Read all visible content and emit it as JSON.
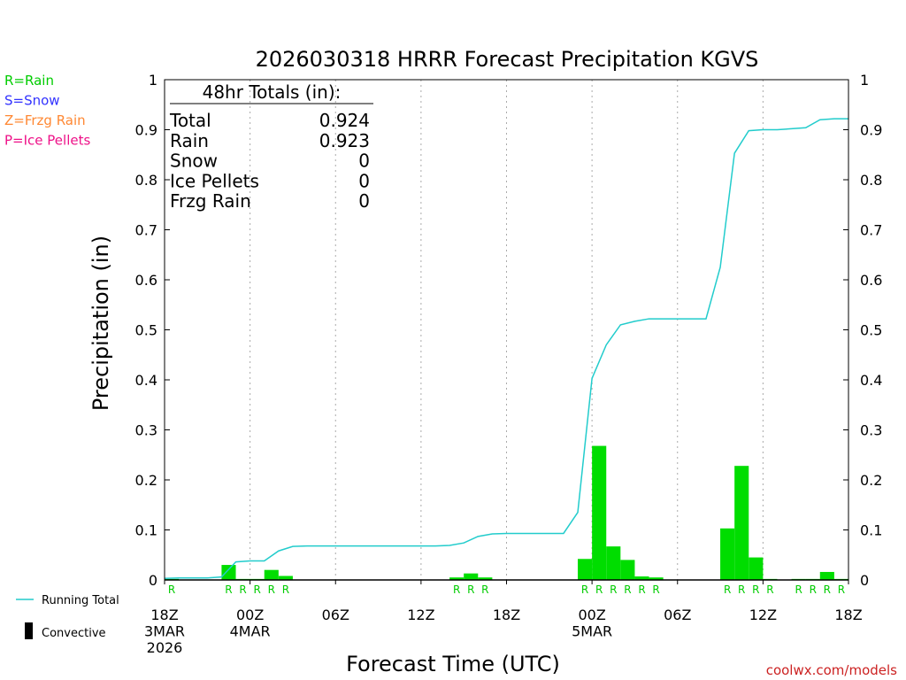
{
  "chart_data": {
    "type": "bar",
    "title": "2026030318 HRRR Forecast Precipitation KGVS",
    "xlabel": "Forecast Time (UTC)",
    "ylabel": "Precipitation (in)",
    "ylim": [
      0,
      1
    ],
    "xlim_hours": [
      0,
      48
    ],
    "y_ticks": [
      "0",
      "0.1",
      "0.2",
      "0.3",
      "0.4",
      "0.5",
      "0.6",
      "0.7",
      "0.8",
      "0.9",
      "1"
    ],
    "x_ticks": [
      {
        "hour": 0,
        "lines": [
          "18Z",
          "3MAR",
          "2026"
        ]
      },
      {
        "hour": 6,
        "lines": [
          "00Z",
          "4MAR"
        ]
      },
      {
        "hour": 12,
        "lines": [
          "06Z"
        ]
      },
      {
        "hour": 18,
        "lines": [
          "12Z"
        ]
      },
      {
        "hour": 24,
        "lines": [
          "18Z"
        ]
      },
      {
        "hour": 30,
        "lines": [
          "00Z",
          "5MAR"
        ]
      },
      {
        "hour": 36,
        "lines": [
          "06Z"
        ]
      },
      {
        "hour": 42,
        "lines": [
          "12Z"
        ]
      },
      {
        "hour": 48,
        "lines": [
          "18Z"
        ]
      }
    ],
    "hourly_precip": [
      {
        "hour": 1,
        "value": 0.002,
        "type": "R"
      },
      {
        "hour": 5,
        "value": 0.03,
        "type": "R"
      },
      {
        "hour": 6,
        "value": 0.002,
        "type": "R"
      },
      {
        "hour": 7,
        "value": 0.002,
        "type": "R"
      },
      {
        "hour": 8,
        "value": 0.02,
        "type": "R"
      },
      {
        "hour": 9,
        "value": 0.008,
        "type": "R"
      },
      {
        "hour": 21,
        "value": 0.005,
        "type": "R"
      },
      {
        "hour": 22,
        "value": 0.013,
        "type": "R"
      },
      {
        "hour": 23,
        "value": 0.005,
        "type": "R"
      },
      {
        "hour": 30,
        "value": 0.042,
        "type": "R"
      },
      {
        "hour": 31,
        "value": 0.268,
        "type": "R"
      },
      {
        "hour": 32,
        "value": 0.067,
        "type": "R"
      },
      {
        "hour": 33,
        "value": 0.04,
        "type": "R"
      },
      {
        "hour": 34,
        "value": 0.007,
        "type": "R"
      },
      {
        "hour": 35,
        "value": 0.005,
        "type": "R"
      },
      {
        "hour": 40,
        "value": 0.103,
        "type": "R"
      },
      {
        "hour": 41,
        "value": 0.228,
        "type": "R"
      },
      {
        "hour": 42,
        "value": 0.045,
        "type": "R"
      },
      {
        "hour": 43,
        "value": 0.002,
        "type": "R"
      },
      {
        "hour": 45,
        "value": 0.002,
        "type": "R"
      },
      {
        "hour": 46,
        "value": 0.002,
        "type": "R"
      },
      {
        "hour": 47,
        "value": 0.016,
        "type": "R"
      },
      {
        "hour": 48,
        "value": 0.002,
        "type": "R"
      }
    ],
    "running_total": [
      [
        0,
        0.003
      ],
      [
        1,
        0.004
      ],
      [
        2,
        0.004
      ],
      [
        3,
        0.004
      ],
      [
        4,
        0.006
      ],
      [
        5,
        0.036
      ],
      [
        6,
        0.038
      ],
      [
        7,
        0.038
      ],
      [
        8,
        0.058
      ],
      [
        9,
        0.067
      ],
      [
        10,
        0.068
      ],
      [
        11,
        0.068
      ],
      [
        12,
        0.068
      ],
      [
        13,
        0.068
      ],
      [
        14,
        0.068
      ],
      [
        15,
        0.068
      ],
      [
        16,
        0.068
      ],
      [
        17,
        0.068
      ],
      [
        18,
        0.068
      ],
      [
        19,
        0.068
      ],
      [
        20,
        0.069
      ],
      [
        21,
        0.074
      ],
      [
        22,
        0.087
      ],
      [
        23,
        0.092
      ],
      [
        24,
        0.093
      ],
      [
        25,
        0.093
      ],
      [
        26,
        0.093
      ],
      [
        27,
        0.093
      ],
      [
        28,
        0.093
      ],
      [
        29,
        0.135
      ],
      [
        30,
        0.403
      ],
      [
        31,
        0.47
      ],
      [
        32,
        0.51
      ],
      [
        33,
        0.517
      ],
      [
        34,
        0.522
      ],
      [
        35,
        0.522
      ],
      [
        36,
        0.522
      ],
      [
        37,
        0.522
      ],
      [
        38,
        0.522
      ],
      [
        39,
        0.625
      ],
      [
        40,
        0.853
      ],
      [
        41,
        0.898
      ],
      [
        42,
        0.9
      ],
      [
        43,
        0.9
      ],
      [
        44,
        0.902
      ],
      [
        45,
        0.904
      ],
      [
        46,
        0.92
      ],
      [
        47,
        0.922
      ],
      [
        48,
        0.922
      ]
    ],
    "totals_box": {
      "heading": "48hr Totals (in):",
      "rows": [
        {
          "label": "Total",
          "value": "0.924"
        },
        {
          "label": "Rain",
          "value": "0.923"
        },
        {
          "label": "Snow",
          "value": "0"
        },
        {
          "label": "Ice Pellets",
          "value": "0"
        },
        {
          "label": "Frzg Rain",
          "value": "0"
        }
      ]
    },
    "type_legend": [
      {
        "text": "R=Rain",
        "color": "#00cc00"
      },
      {
        "text": "S=Snow",
        "color": "#3333ff"
      },
      {
        "text": "Z=Frzg Rain",
        "color": "#ff8833"
      },
      {
        "text": "P=Ice Pellets",
        "color": "#ee1188"
      }
    ],
    "series_legend": {
      "running_total": "Running Total",
      "convective": "Convective"
    },
    "credit": "coolwx.com/models",
    "colors": {
      "bar": "#00dd00",
      "line": "#22cccc",
      "type_label": "#00cc00",
      "credit": "#cc2222",
      "grid": "#aaaaaa"
    }
  }
}
